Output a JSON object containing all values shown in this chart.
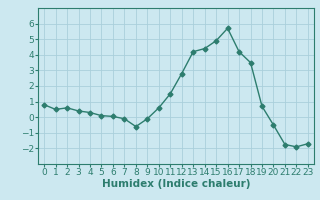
{
  "x": [
    0,
    1,
    2,
    3,
    4,
    5,
    6,
    7,
    8,
    9,
    10,
    11,
    12,
    13,
    14,
    15,
    16,
    17,
    18,
    19,
    20,
    21,
    22,
    23
  ],
  "y": [
    0.8,
    0.5,
    0.6,
    0.4,
    0.3,
    0.1,
    0.05,
    -0.1,
    -0.6,
    -0.1,
    0.6,
    1.5,
    2.8,
    4.2,
    4.4,
    4.9,
    5.7,
    4.2,
    3.5,
    0.7,
    -0.5,
    -1.75,
    -1.9,
    -1.7
  ],
  "line_color": "#2d7d6e",
  "marker": "D",
  "marker_size": 2.5,
  "line_width": 1.0,
  "xlabel": "Humidex (Indice chaleur)",
  "xlim": [
    -0.5,
    23.5
  ],
  "ylim": [
    -3,
    7
  ],
  "yticks": [
    -2,
    -1,
    0,
    1,
    2,
    3,
    4,
    5,
    6
  ],
  "xticks": [
    0,
    1,
    2,
    3,
    4,
    5,
    6,
    7,
    8,
    9,
    10,
    11,
    12,
    13,
    14,
    15,
    16,
    17,
    18,
    19,
    20,
    21,
    22,
    23
  ],
  "bg_color": "#cce8f0",
  "grid_color": "#aacfdb",
  "xlabel_fontsize": 7.5,
  "tick_fontsize": 6.5,
  "spine_color": "#2d7d6e",
  "text_color": "#2d5f6e"
}
